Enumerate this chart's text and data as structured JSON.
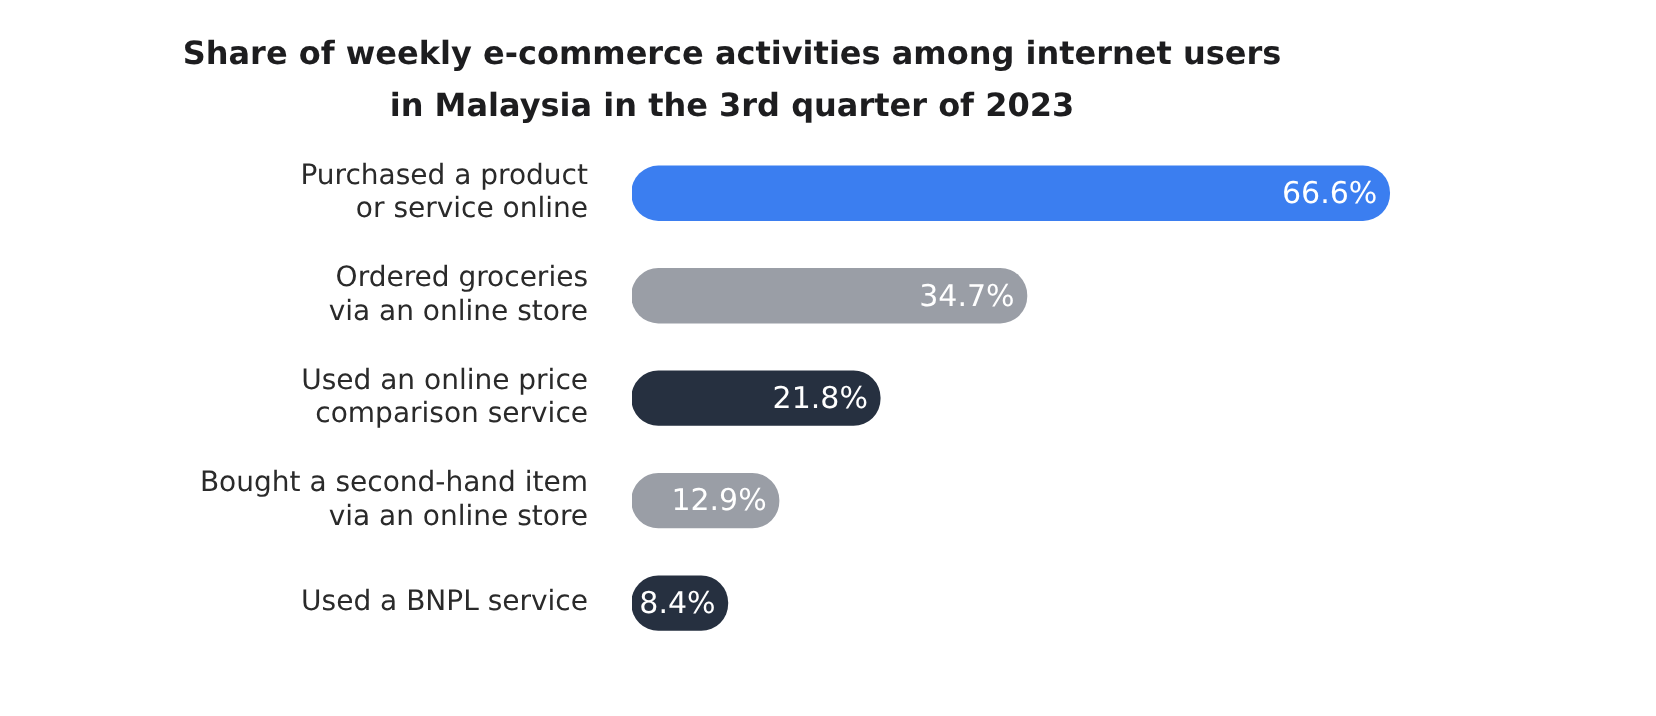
{
  "chart_data": {
    "type": "bar",
    "orientation": "horizontal",
    "title": "Share of weekly e-commerce activities among internet users in Malaysia in the 3rd quarter of 2023",
    "categories": [
      "Purchased a product or service online",
      "Ordered groceries via an online store",
      "Used an online price comparison service",
      "Bought a second-hand item via an online store",
      "Used a BNPL service"
    ],
    "values": [
      66.6,
      34.7,
      21.8,
      12.9,
      8.4
    ],
    "colors": [
      "#3b7ef0",
      "#9a9ea6",
      "#263040",
      "#9a9ea6",
      "#263040"
    ],
    "value_labels": [
      "66.6%",
      "34.7%",
      "21.8%",
      "12.9%",
      "8.4%"
    ],
    "grid": false,
    "legend": false
  }
}
